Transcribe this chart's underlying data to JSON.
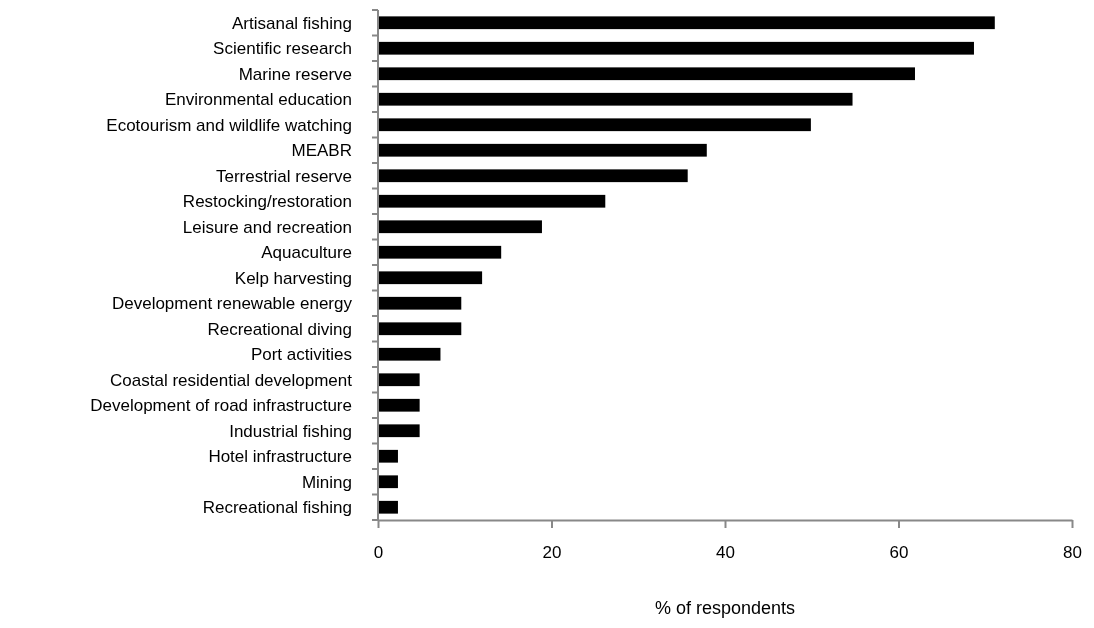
{
  "chart_data": {
    "type": "bar",
    "orientation": "horizontal",
    "xlabel": "% of respondents",
    "categories": [
      "Artisanal fishing",
      "Scientific research",
      "Marine reserve",
      "Environmental education",
      "Ecotourism and wildlife watching",
      "MEABR",
      "Terrestrial reserve",
      "Restocking/restoration",
      "Leisure and recreation",
      "Aquaculture",
      "Kelp harvesting",
      "Development renewable energy",
      "Recreational diving",
      "Port activities",
      "Coastal residential development",
      "Development of road infrastructure",
      "Industrial fishing",
      "Hotel infrastructure",
      "Mining",
      "Recreational fishing"
    ],
    "values": [
      71.1,
      68.7,
      61.9,
      54.7,
      49.9,
      37.9,
      35.7,
      26.2,
      18.9,
      14.2,
      12.0,
      9.6,
      9.6,
      7.2,
      4.8,
      4.8,
      4.8,
      2.3,
      2.3,
      2.3
    ],
    "color": "#000000",
    "xlim": [
      0,
      80
    ],
    "xticks": [
      0,
      20,
      40,
      60,
      80
    ],
    "grid": false
  }
}
